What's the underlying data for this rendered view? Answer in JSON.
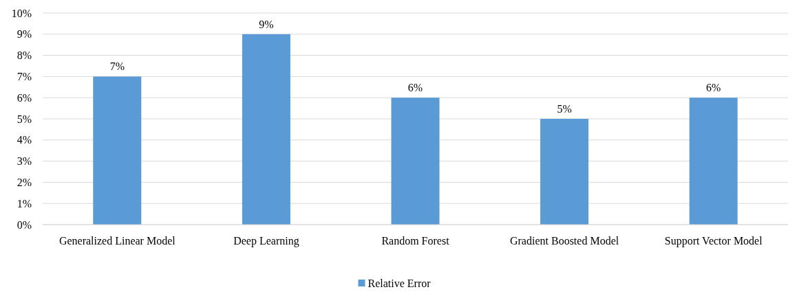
{
  "chart_data": {
    "type": "bar",
    "categories": [
      "Generalized Linear Model",
      "Deep Learning",
      "Random Forest",
      "Gradient Boosted Model",
      "Support Vector Model"
    ],
    "series": [
      {
        "name": "Relative Error",
        "color": "#5b9bd5",
        "values": [
          7,
          9,
          6,
          5,
          6
        ],
        "value_labels": [
          "7%",
          "9%",
          "6%",
          "5%",
          "6%"
        ]
      }
    ],
    "ylim": [
      0,
      10
    ],
    "yticks": [
      {
        "value": 0,
        "label": "0%"
      },
      {
        "value": 1,
        "label": "1%"
      },
      {
        "value": 2,
        "label": "2%"
      },
      {
        "value": 3,
        "label": "3%"
      },
      {
        "value": 4,
        "label": "4%"
      },
      {
        "value": 5,
        "label": "5%"
      },
      {
        "value": 6,
        "label": "6%"
      },
      {
        "value": 7,
        "label": "7%"
      },
      {
        "value": 8,
        "label": "8%"
      },
      {
        "value": 9,
        "label": "9%"
      },
      {
        "value": 10,
        "label": "10%"
      }
    ],
    "grid": "y",
    "legend": "bottom"
  }
}
